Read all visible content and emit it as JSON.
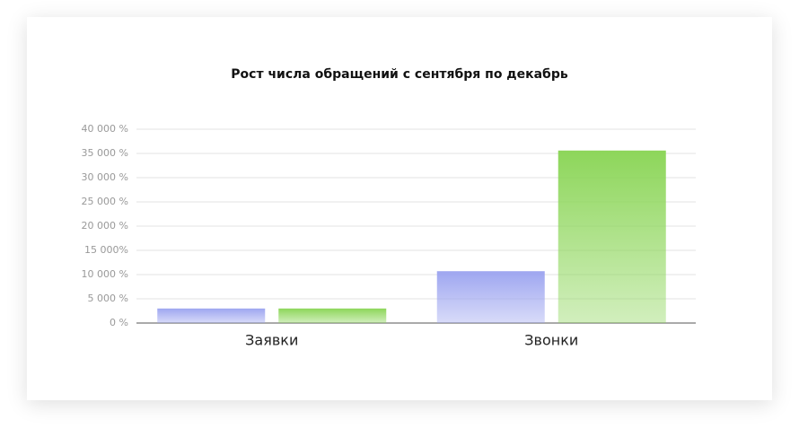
{
  "chart_data": {
    "type": "bar",
    "title": "Рост числа обращений с сентября по декабрь",
    "categories": [
      "Заявки",
      "Звонки"
    ],
    "series": [
      {
        "color": "#9ea6f0",
        "values": [
          3000,
          10700
        ]
      },
      {
        "color": "#8dd65a",
        "values": [
          3000,
          35600
        ]
      }
    ],
    "ylim": [
      0,
      40000
    ],
    "yticks": [
      {
        "value": 0,
        "label": "0 %"
      },
      {
        "value": 5000,
        "label": "5 000 %"
      },
      {
        "value": 10000,
        "label": "10 000 %"
      },
      {
        "value": 15000,
        "label": "15 000%"
      },
      {
        "value": 20000,
        "label": "20 000 %"
      },
      {
        "value": 25000,
        "label": "25 000 %"
      },
      {
        "value": 30000,
        "label": "30 000 %"
      },
      {
        "value": 35000,
        "label": "35 000 %"
      },
      {
        "value": 40000,
        "label": "40 000 %"
      }
    ],
    "grid": true
  }
}
